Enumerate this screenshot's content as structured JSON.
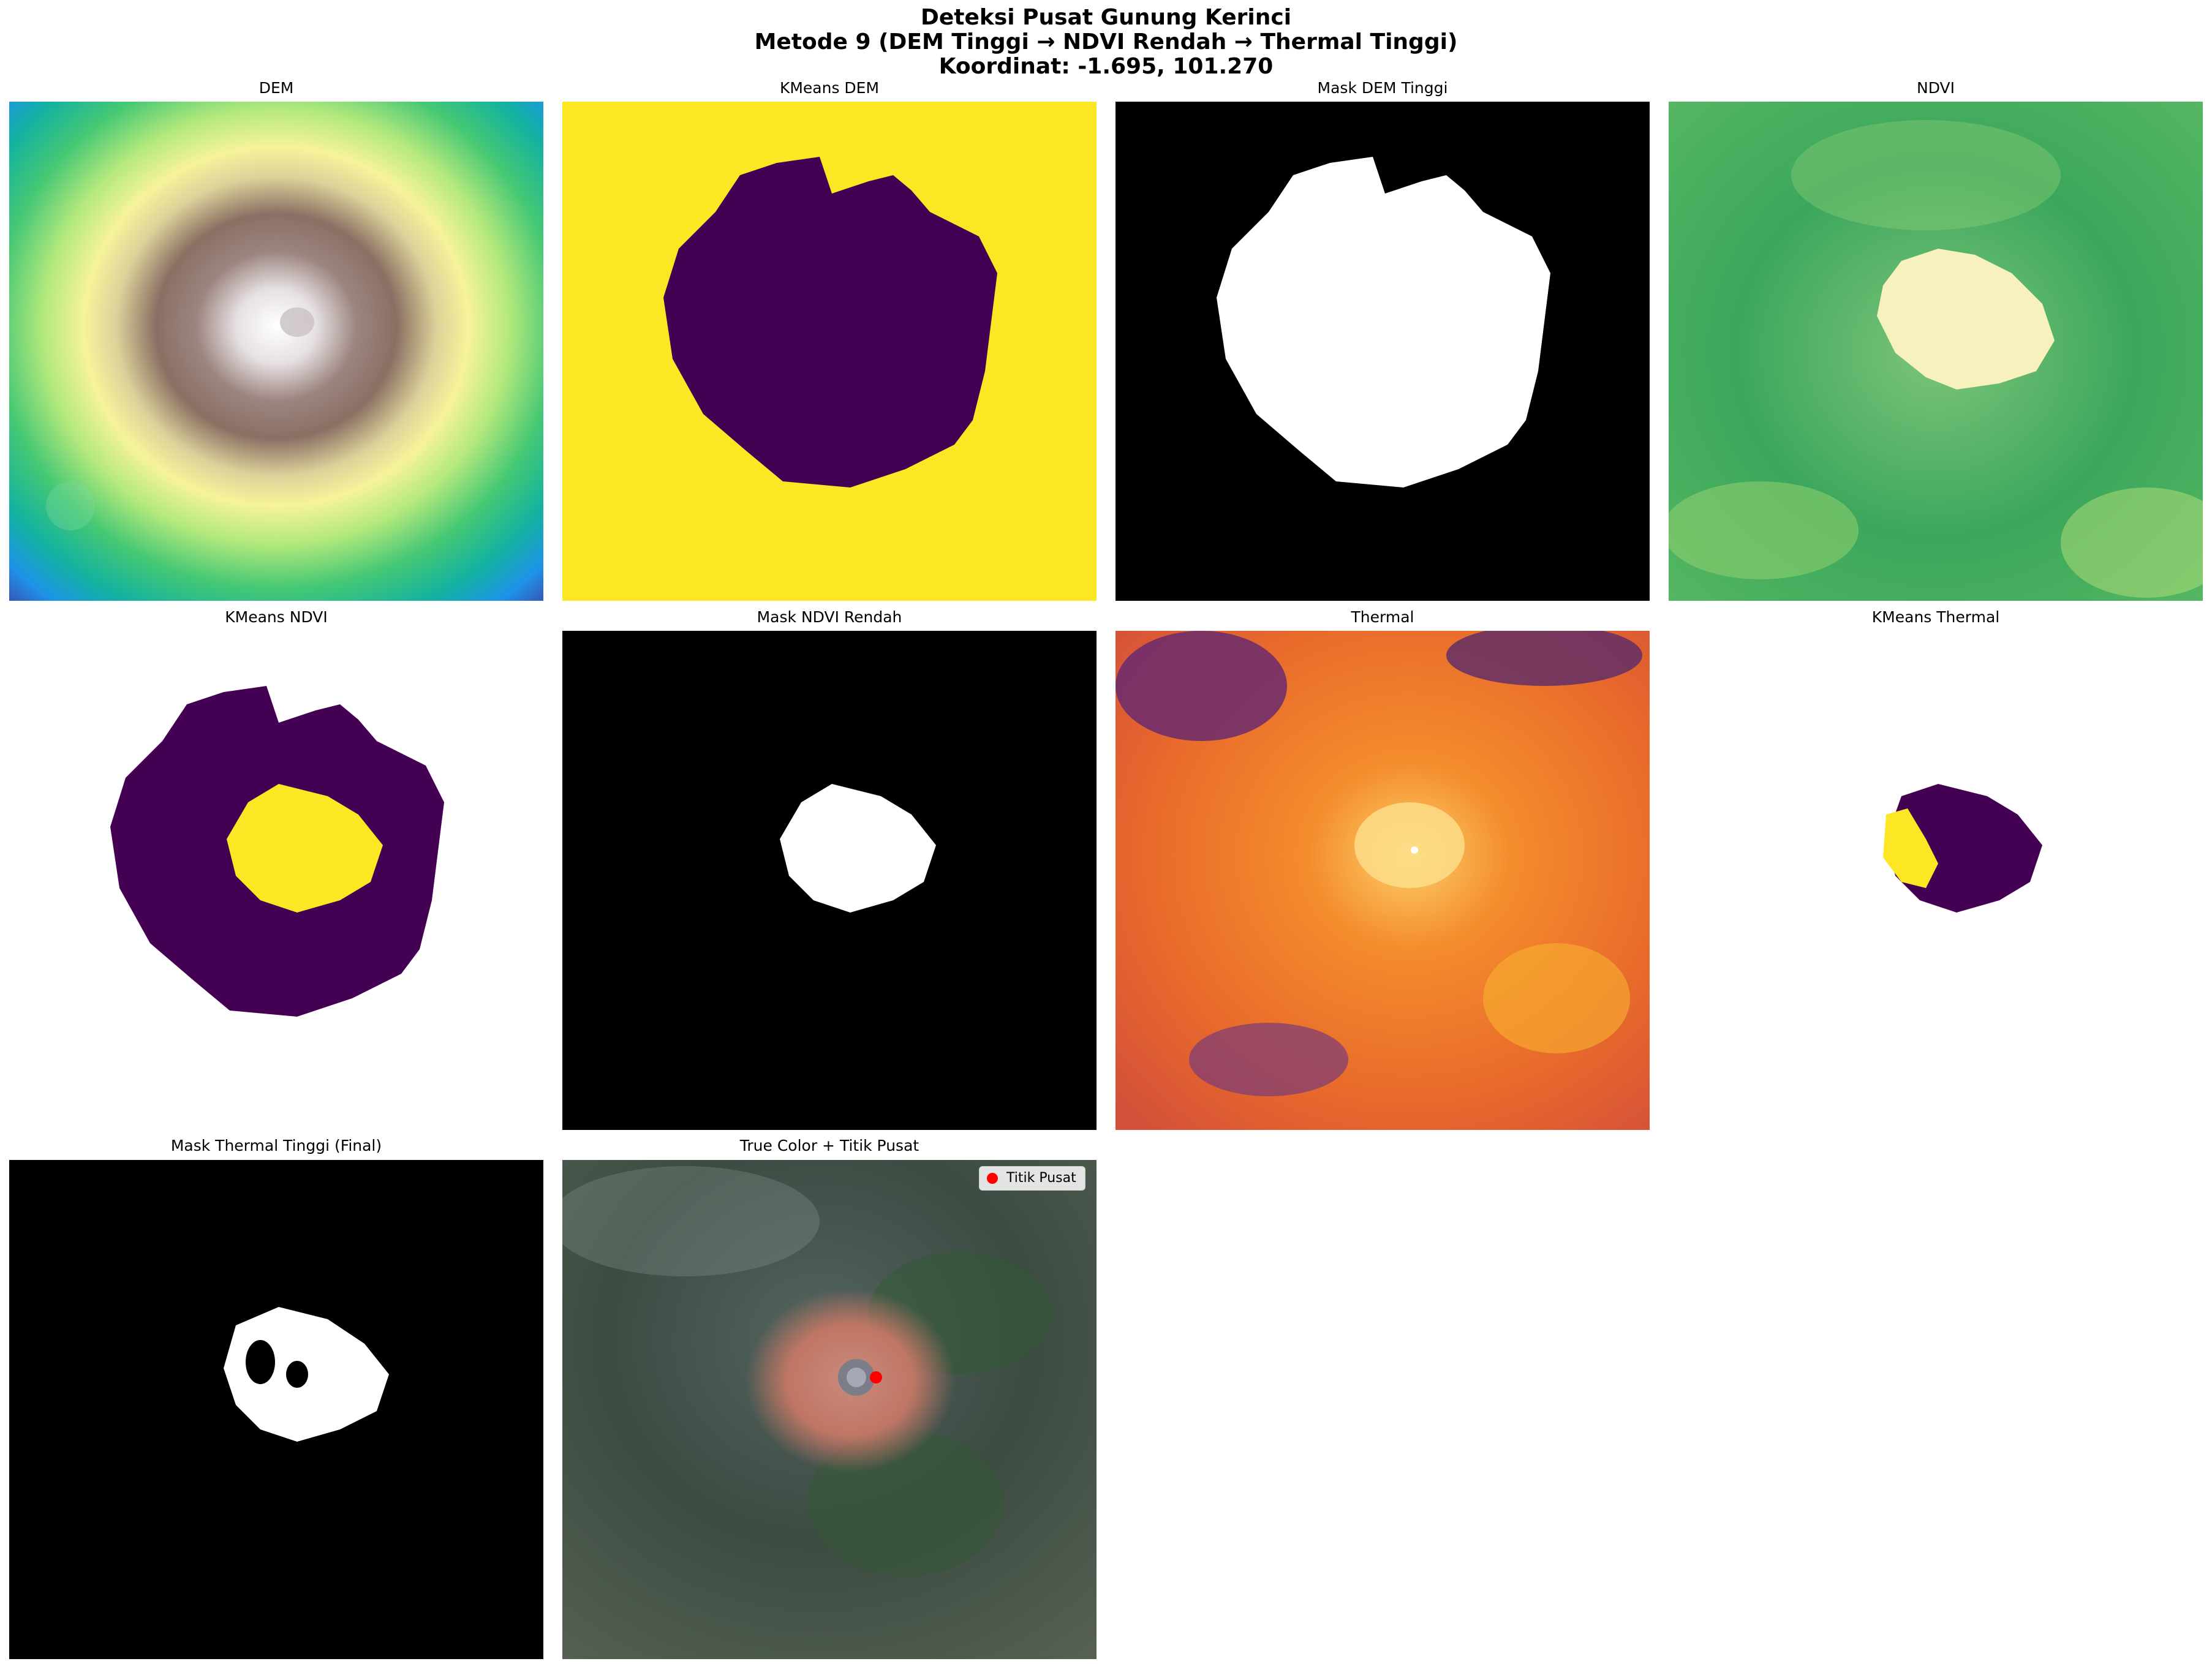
{
  "figure": {
    "title_line1": "Deteksi Pusat Gunung Kerinci",
    "title_line2": "Metode 9 (DEM Tinggi → NDVI Rendah → Thermal Tinggi)",
    "title_line3": "Koordinat: -1.695, 101.270"
  },
  "panels": [
    {
      "title": "DEM"
    },
    {
      "title": "KMeans DEM"
    },
    {
      "title": "Mask DEM Tinggi"
    },
    {
      "title": "NDVI"
    },
    {
      "title": "KMeans NDVI"
    },
    {
      "title": "Mask NDVI Rendah"
    },
    {
      "title": "Thermal"
    },
    {
      "title": "KMeans Thermal"
    },
    {
      "title": "Mask Thermal Tinggi (Final)"
    },
    {
      "title": "True Color + Titik Pusat"
    }
  ],
  "legend": {
    "label": "Titik Pusat",
    "marker_color": "#ff0000"
  },
  "colors": {
    "viridis_low": "#440154",
    "viridis_high": "#fde725",
    "mask_bg": "#000000",
    "mask_fg": "#ffffff"
  }
}
